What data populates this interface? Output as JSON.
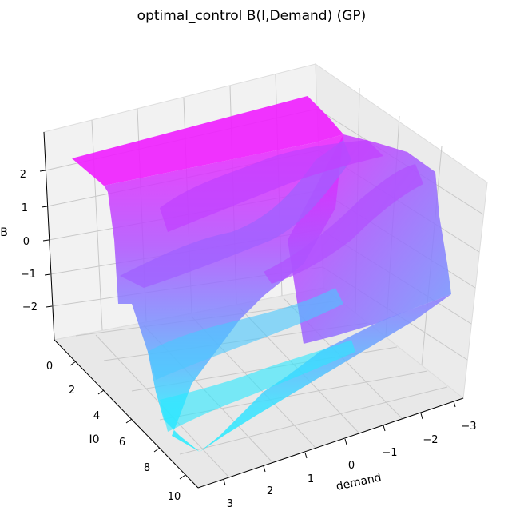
{
  "chart_data": {
    "type": "surface",
    "title": "optimal_control B(I,Demand) (GP)",
    "xlabel": "demand",
    "ylabel": "I0",
    "zlabel": "B",
    "xlim": [
      -3,
      3
    ],
    "ylim": [
      0,
      10
    ],
    "zlim": [
      -3,
      3
    ],
    "x_ticks": [
      "−3",
      "−2",
      "−1",
      "0",
      "1",
      "2",
      "3"
    ],
    "y_ticks": [
      "0",
      "2",
      "4",
      "6",
      "8",
      "10"
    ],
    "z_ticks": [
      "2",
      "1",
      "0",
      "−1",
      "−2"
    ],
    "colormap": "cool",
    "grid": true
  }
}
